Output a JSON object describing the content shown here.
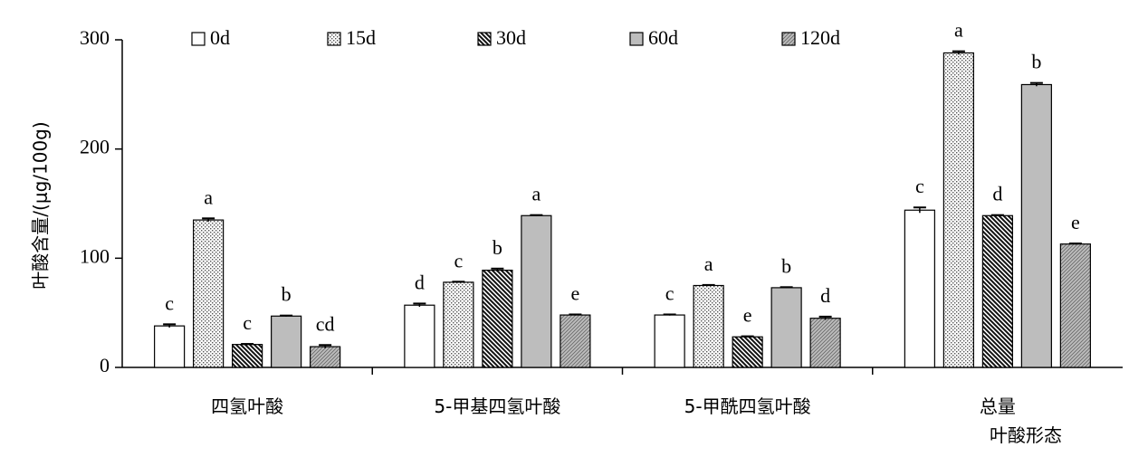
{
  "chart_data": {
    "type": "bar",
    "title": "",
    "ylabel": "叶酸含量/(μg/100g)",
    "xlabel": "叶酸形态",
    "ylim": [
      0,
      300
    ],
    "yticks": [
      0,
      100,
      200,
      300
    ],
    "legend_position": "top",
    "categories": [
      "四氢叶酸",
      "5-甲基四氢叶酸",
      "5-甲酰四氢叶酸",
      "总量"
    ],
    "series": [
      {
        "name": "0d",
        "pattern": "white",
        "values": [
          38,
          57,
          48,
          144
        ],
        "errors": [
          1.5,
          1.5,
          0.5,
          2.5
        ],
        "labels": [
          "c",
          "d",
          "c",
          "c"
        ]
      },
      {
        "name": "15d",
        "pattern": "dots",
        "values": [
          135,
          78,
          75,
          288
        ],
        "errors": [
          1.5,
          0.5,
          0.5,
          1.5
        ],
        "labels": [
          "a",
          "c",
          "a",
          "a"
        ]
      },
      {
        "name": "30d",
        "pattern": "dense-hatch",
        "values": [
          21,
          89,
          28,
          139
        ],
        "errors": [
          0.5,
          1.5,
          0.5,
          0.5
        ],
        "labels": [
          "c",
          "b",
          "e",
          "d"
        ]
      },
      {
        "name": "60d",
        "pattern": "gray",
        "values": [
          47,
          139,
          73,
          259
        ],
        "errors": [
          0.5,
          0.5,
          0.5,
          1.5
        ],
        "labels": [
          "b",
          "a",
          "b",
          "b"
        ]
      },
      {
        "name": "120d",
        "pattern": "light-hatch",
        "values": [
          19,
          48,
          45,
          113
        ],
        "errors": [
          1.5,
          0.5,
          1.5,
          0.5
        ],
        "labels": [
          "cd",
          "e",
          "d",
          "e"
        ]
      }
    ]
  }
}
